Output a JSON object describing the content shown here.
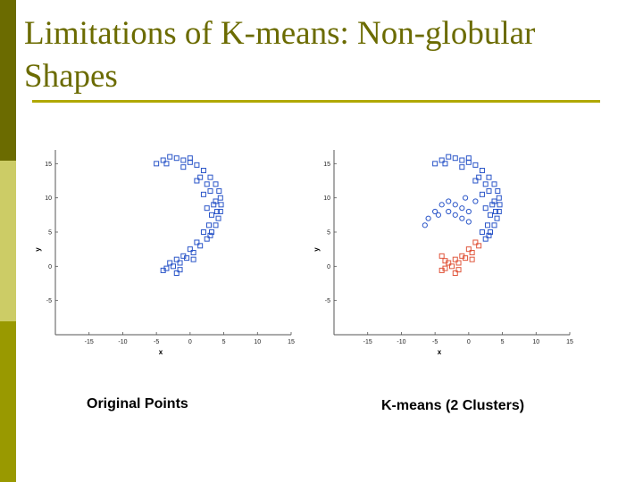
{
  "title": "Limitations of K-means: Non-globular Shapes",
  "colors": {
    "accent": "#6b6b00",
    "blue": "#2a55c8",
    "red": "#e0553b"
  },
  "captions": {
    "left": "Original Points",
    "right": "K-means (2 Clusters)"
  },
  "chart_data": [
    {
      "type": "scatter",
      "title": "",
      "xlabel": "x",
      "ylabel": "y",
      "xlim": [
        -20,
        15
      ],
      "ylim": [
        -10,
        17
      ],
      "xticks": [
        -15,
        -10,
        -5,
        0,
        5,
        10,
        15
      ],
      "yticks": [
        -5,
        0,
        5,
        10,
        15
      ],
      "series": [
        {
          "color": "#2a55c8",
          "marker": "square",
          "points": [
            [
              -4,
              15.5
            ],
            [
              -3,
              16
            ],
            [
              -2,
              15.8
            ],
            [
              -1,
              15.5
            ],
            [
              0,
              15.2
            ],
            [
              1,
              14.8
            ],
            [
              2,
              14
            ],
            [
              3,
              13
            ],
            [
              3.8,
              12
            ],
            [
              4.3,
              11
            ],
            [
              4.5,
              10
            ],
            [
              4.6,
              9
            ],
            [
              4.5,
              8
            ],
            [
              4.2,
              7
            ],
            [
              3.8,
              6
            ],
            [
              3.2,
              5
            ],
            [
              2.5,
              4
            ],
            [
              1.5,
              3
            ],
            [
              0.5,
              2
            ],
            [
              -0.5,
              1.2
            ],
            [
              -1.5,
              0.5
            ],
            [
              -2.5,
              0
            ],
            [
              -3.5,
              -0.3
            ],
            [
              -4,
              -0.6
            ],
            [
              -2,
              -1
            ],
            [
              -5,
              15
            ],
            [
              -1,
              14.5
            ],
            [
              1.5,
              13
            ],
            [
              2.5,
              12
            ],
            [
              3,
              11
            ],
            [
              3.5,
              9
            ],
            [
              3.2,
              7.5
            ],
            [
              2.8,
              6
            ],
            [
              2,
              5
            ],
            [
              1,
              3.5
            ],
            [
              0,
              2.5
            ],
            [
              -1,
              1.5
            ],
            [
              -2,
              1
            ],
            [
              -3,
              0.5
            ],
            [
              1,
              12.5
            ],
            [
              2,
              10.5
            ],
            [
              2.5,
              8.5
            ],
            [
              3.8,
              9.5
            ],
            [
              3,
              4.5
            ],
            [
              0,
              15.8
            ],
            [
              -3.5,
              15
            ],
            [
              4,
              8
            ],
            [
              -1.5,
              -0.5
            ],
            [
              0.5,
              1
            ]
          ]
        }
      ]
    },
    {
      "type": "scatter",
      "title": "",
      "xlabel": "x",
      "ylabel": "y",
      "xlim": [
        -20,
        15
      ],
      "ylim": [
        -10,
        17
      ],
      "xticks": [
        -15,
        -10,
        -5,
        0,
        5,
        10,
        15
      ],
      "yticks": [
        -5,
        0,
        5,
        10,
        15
      ],
      "series": [
        {
          "color": "#2a55c8",
          "marker": "square",
          "points": [
            [
              -4,
              15.5
            ],
            [
              -3,
              16
            ],
            [
              -2,
              15.8
            ],
            [
              -1,
              15.5
            ],
            [
              0,
              15.2
            ],
            [
              1,
              14.8
            ],
            [
              2,
              14
            ],
            [
              3,
              13
            ],
            [
              3.8,
              12
            ],
            [
              4.3,
              11
            ],
            [
              4.5,
              10
            ],
            [
              4.6,
              9
            ],
            [
              4.5,
              8
            ],
            [
              4.2,
              7
            ],
            [
              3.8,
              6
            ],
            [
              3.2,
              5
            ],
            [
              2.5,
              4
            ],
            [
              -5,
              15
            ],
            [
              -1,
              14.5
            ],
            [
              1.5,
              13
            ],
            [
              2.5,
              12
            ],
            [
              3,
              11
            ],
            [
              3.5,
              9
            ],
            [
              3.2,
              7.5
            ],
            [
              2.8,
              6
            ],
            [
              2,
              5
            ],
            [
              1,
              12.5
            ],
            [
              2,
              10.5
            ],
            [
              2.5,
              8.5
            ],
            [
              3.8,
              9.5
            ],
            [
              3,
              4.5
            ],
            [
              0,
              15.8
            ],
            [
              -3.5,
              15
            ],
            [
              4,
              8
            ]
          ]
        },
        {
          "color": "#2a55c8",
          "marker": "circle",
          "points": [
            [
              -5,
              8
            ],
            [
              -4,
              9
            ],
            [
              -3,
              9.5
            ],
            [
              -2,
              9
            ],
            [
              -1,
              8.5
            ],
            [
              0,
              8
            ],
            [
              -6,
              7
            ],
            [
              -6.5,
              6
            ],
            [
              -1,
              7
            ],
            [
              0,
              6.5
            ],
            [
              -3,
              8
            ],
            [
              -4.5,
              7.5
            ],
            [
              -2,
              7.5
            ],
            [
              1,
              9.5
            ],
            [
              -0.5,
              10
            ]
          ]
        },
        {
          "color": "#e0553b",
          "marker": "square",
          "points": [
            [
              1.5,
              3
            ],
            [
              0.5,
              2
            ],
            [
              -0.5,
              1.2
            ],
            [
              -1.5,
              0.5
            ],
            [
              -2.5,
              0
            ],
            [
              -3.5,
              -0.3
            ],
            [
              -4,
              -0.6
            ],
            [
              -2,
              -1
            ],
            [
              1,
              3.5
            ],
            [
              0,
              2.5
            ],
            [
              -1,
              1.5
            ],
            [
              -2,
              1
            ],
            [
              -3,
              0.5
            ],
            [
              -1.5,
              -0.5
            ],
            [
              0.5,
              1
            ],
            [
              -4,
              1.5
            ],
            [
              -3.5,
              0.8
            ]
          ]
        }
      ]
    }
  ]
}
